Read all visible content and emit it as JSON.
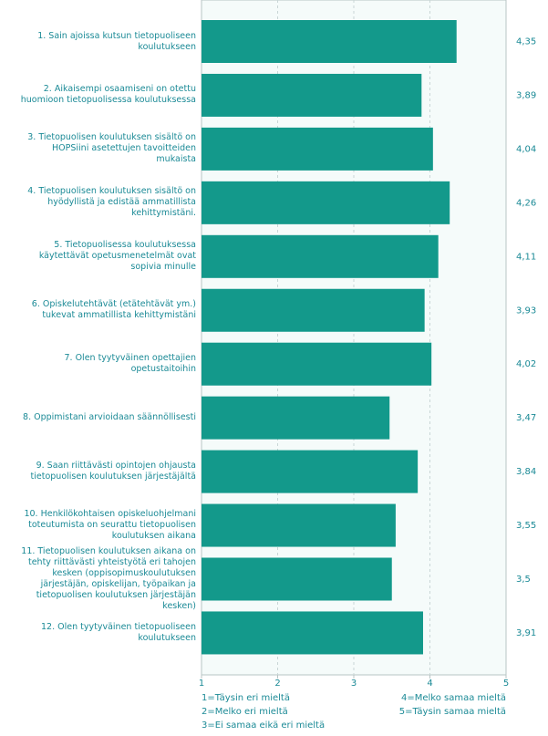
{
  "chart_data": {
    "type": "bar",
    "orientation": "horizontal",
    "categories": [
      "1. Sain ajoissa kutsun tietopuoliseen koulutukseen",
      "2. Aikaisempi osaamiseni on otettu huomioon tietopuolisessa koulutuksessa",
      "3. Tietopuolisen koulutuksen sisältö on HOPSiini asetettujen tavoitteiden mukaista",
      "4. Tietopuolisen koulutuksen sisältö on hyödyllistä ja edistää ammatillista kehittymistäni.",
      "5. Tietopuolisessa koulutuksessa käytettävät opetusmenetelmät ovat sopivia minulle",
      "6. Opiskelutehtävät (etätehtävät ym.) tukevat ammatillista kehittymistäni",
      "7. Olen tyytyväinen opettajien opetustaitoihin",
      "8. Oppimistani arvioidaan säännöllisesti",
      "9. Saan riittävästi opintojen ohjausta tietopuolisen koulutuksen järjestäjältä",
      "10. Henkilökohtaisen opiskeluohjelmani toteutumista on seurattu tietopuolisen koulutuksen aikana",
      "11. Tietopuolisen koulutuksen aikana on tehty riittävästi yhteistyötä eri tahojen kesken (oppisopimuskoulutuksen järjestäjän, opiskelijan, työpaikan ja tietopuolisen koulutuksen järjestäjän kesken)",
      "12. Olen tyytyväinen tietopuoliseen koulutukseen"
    ],
    "values": [
      4.35,
      3.89,
      4.04,
      4.26,
      4.11,
      3.93,
      4.02,
      3.47,
      3.84,
      3.55,
      3.5,
      3.91
    ],
    "value_labels": [
      "4,35",
      "3,89",
      "4,04",
      "4,26",
      "4,11",
      "3,93",
      "4,02",
      "3,47",
      "3,84",
      "3,55",
      "3,5",
      "3,91"
    ],
    "color": "#13998b",
    "xlim": [
      1,
      5
    ],
    "xticks": [
      1,
      2,
      3,
      4,
      5
    ],
    "grid": true,
    "legend_left": [
      "1=Täysin eri mieltä",
      "2=Melko eri mieltä",
      "3=Ei samaa eikä eri mieltä"
    ],
    "legend_right": [
      "4=Melko samaa mieltä",
      "5=Täysin samaa mieltä"
    ]
  }
}
